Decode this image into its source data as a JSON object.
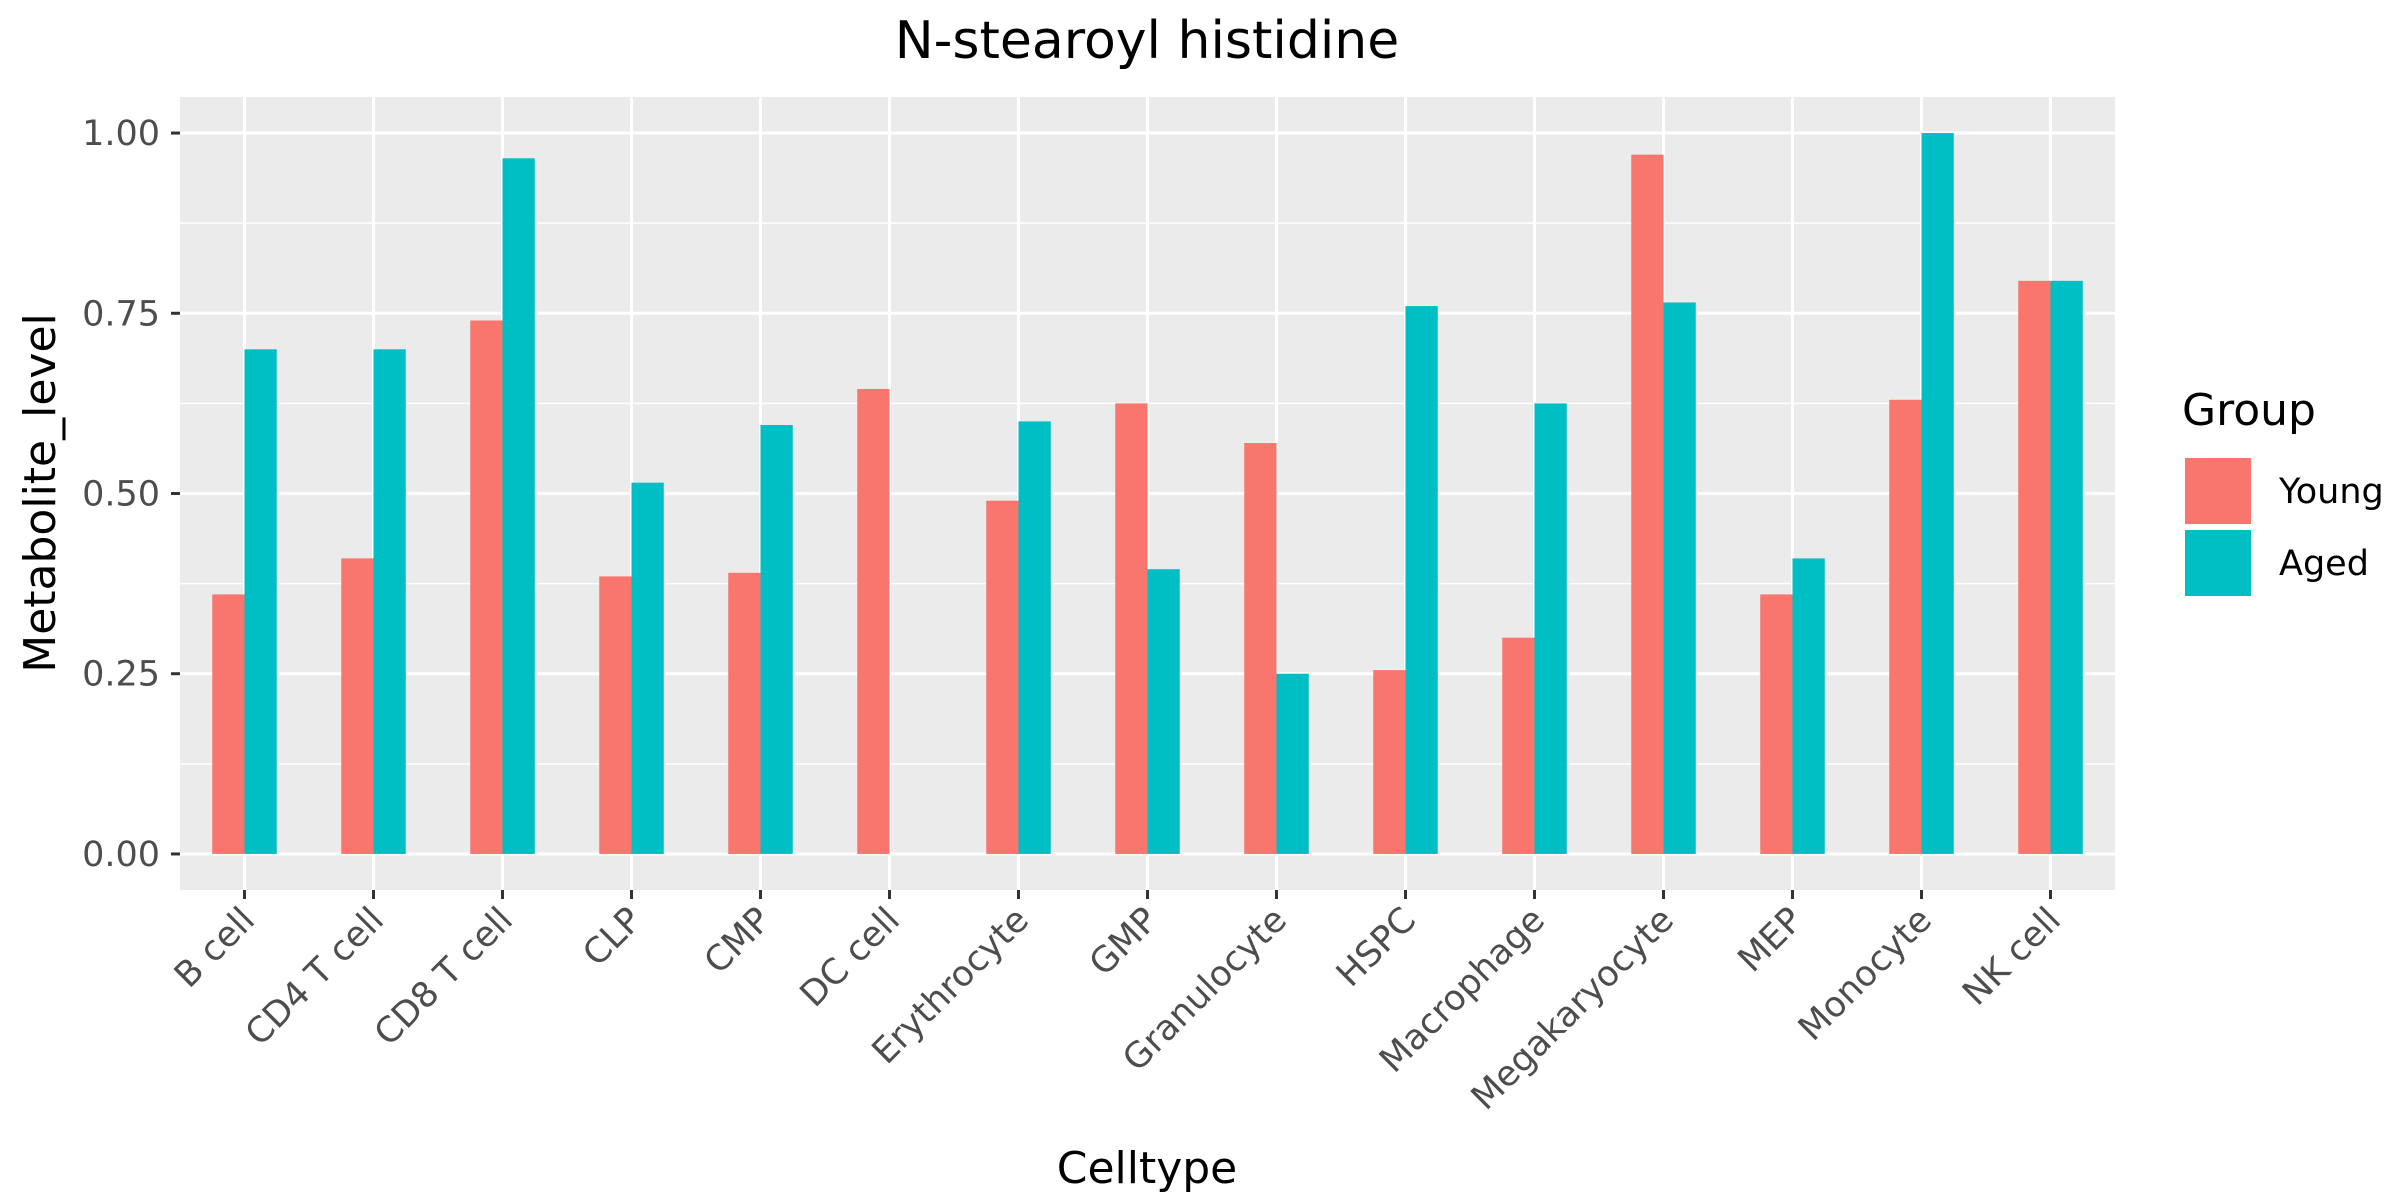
{
  "chart_data": {
    "type": "bar",
    "title": "N-stearoyl histidine",
    "xlabel": "Celltype",
    "ylabel": "Metabolite_level",
    "ylim": [
      -0.05,
      1.05
    ],
    "yticks": [
      0.0,
      0.25,
      0.5,
      0.75,
      1.0
    ],
    "ytick_labels": [
      "0.00",
      "0.25",
      "0.50",
      "0.75",
      "1.00"
    ],
    "grid": true,
    "legend": {
      "title": "Group",
      "position": "right"
    },
    "categories": [
      "B cell",
      "CD4 T cell",
      "CD8 T cell",
      "CLP",
      "CMP",
      "DC cell",
      "Erythrocyte",
      "GMP",
      "Granulocyte",
      "HSPC",
      "Macrophage",
      "Megakaryocyte",
      "MEP",
      "Monocyte",
      "NK cell"
    ],
    "series": [
      {
        "name": "Young",
        "color": "#F8766D",
        "values": [
          0.36,
          0.41,
          0.74,
          0.385,
          0.39,
          0.645,
          0.49,
          0.625,
          0.57,
          0.255,
          0.3,
          0.97,
          0.36,
          0.63,
          0.795
        ]
      },
      {
        "name": "Aged",
        "color": "#00BFC4",
        "values": [
          0.7,
          0.7,
          0.965,
          0.515,
          0.595,
          null,
          0.6,
          0.395,
          0.25,
          0.76,
          0.625,
          0.765,
          0.41,
          1.0,
          0.795
        ]
      }
    ]
  }
}
